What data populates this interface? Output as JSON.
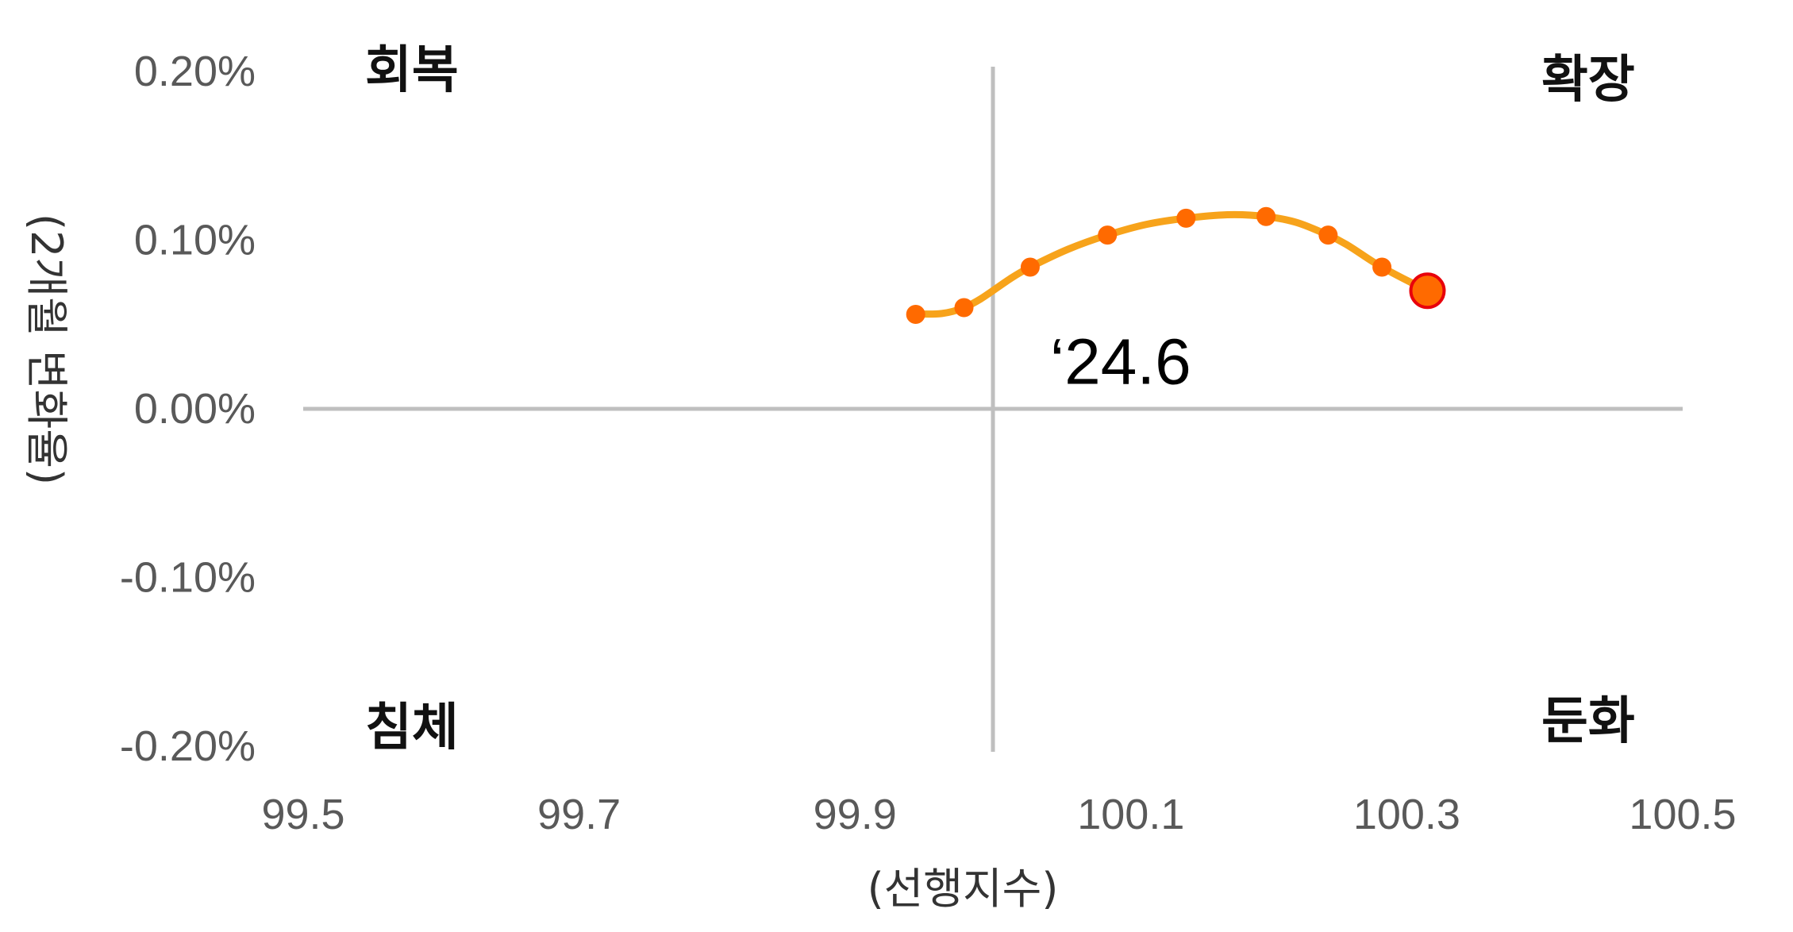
{
  "chart_data": {
    "type": "line",
    "title": "",
    "xlabel": "(선행지수)",
    "ylabel": "(2개월 변화율)",
    "xlim": [
      99.5,
      100.5
    ],
    "ylim": [
      -0.2,
      0.2
    ],
    "x_ticks": [
      "99.5",
      "99.7",
      "99.9",
      "100.1",
      "100.3",
      "100.5"
    ],
    "x_tick_values": [
      99.5,
      99.7,
      99.9,
      100.1,
      100.3,
      100.5
    ],
    "y_ticks": [
      "0.20%",
      "0.10%",
      "0.00%",
      "-0.10%",
      "-0.20%"
    ],
    "y_tick_values": [
      0.2,
      0.1,
      0.0,
      -0.1,
      -0.2
    ],
    "reference_lines": {
      "x": 100.0,
      "y": 0.0
    },
    "quadrants": {
      "top_left": "회복",
      "top_right": "확장",
      "bottom_left": "침체",
      "bottom_right": "둔화"
    },
    "series": [
      {
        "x": [
          99.944,
          99.979,
          100.027,
          100.083,
          100.14,
          100.198,
          100.243,
          100.282,
          100.315
        ],
        "y": [
          0.056,
          0.06,
          0.084,
          0.103,
          0.113,
          0.114,
          0.103,
          0.084,
          0.07
        ],
        "color": "#F7A31B",
        "marker_color": "#FF6A00",
        "last_marker_color": "#FF6A00",
        "last_marker_edge": "#E8000B"
      }
    ],
    "annotations": [
      {
        "text": "‘24.6",
        "x": 100.05,
        "y": 0.028
      }
    ],
    "grid": false,
    "legend": "none"
  }
}
